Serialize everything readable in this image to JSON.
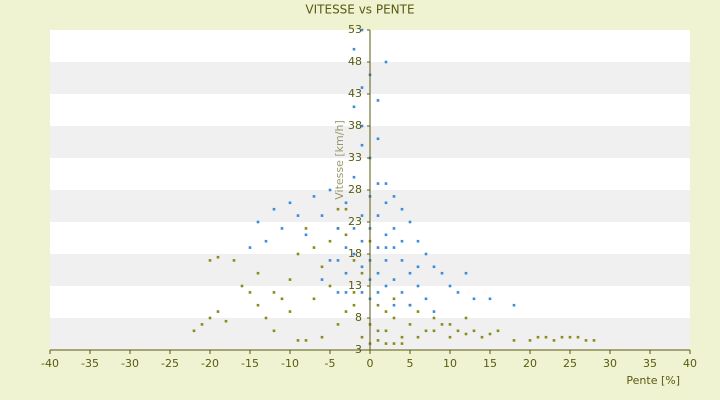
{
  "chart_data": {
    "type": "scatter",
    "title": "VITESSE vs PENTE",
    "xlabel": "Pente [%]",
    "ylabel": "Vitesse [km/h]",
    "xlim": [
      -40,
      40
    ],
    "xticks": [
      -40,
      -35,
      -30,
      -25,
      -20,
      -15,
      -10,
      -5,
      0,
      5,
      10,
      15,
      20,
      25,
      30,
      35,
      40
    ],
    "ylim": [
      3,
      53
    ],
    "yticks": [
      3,
      8,
      13,
      18,
      23,
      28,
      33,
      38,
      43,
      48,
      53
    ],
    "grid": true,
    "series": [
      {
        "color": "#8a8a1a",
        "x": [
          -22,
          -21,
          -20,
          -19,
          -18,
          -20,
          -19,
          -17,
          -16,
          -15,
          -14,
          -13,
          -12,
          -11,
          -10,
          -9,
          -8,
          -7,
          -6,
          -5,
          -4,
          -3,
          -2,
          -1,
          0,
          1,
          2,
          3,
          4,
          5,
          6,
          7,
          8,
          9,
          10,
          11,
          12,
          13,
          14,
          15,
          16,
          18,
          20,
          21,
          22,
          23,
          24,
          25,
          26,
          27,
          28,
          -6,
          -4,
          -3,
          -2,
          -1,
          0,
          1,
          2,
          3,
          4,
          5,
          6,
          -8,
          -12,
          -10,
          -7,
          -5,
          -4,
          -3,
          -2,
          0,
          1,
          2,
          3,
          8,
          10,
          12,
          -14,
          -9
        ],
        "y": [
          6,
          7,
          8,
          9,
          7.5,
          17,
          17.5,
          17,
          13,
          12,
          10,
          8,
          6,
          11,
          14,
          18,
          22,
          19,
          16,
          13,
          25,
          21,
          10,
          5,
          4,
          4.5,
          6,
          8,
          5,
          7,
          9,
          6,
          8,
          7,
          5,
          6,
          5.5,
          6,
          5,
          5.5,
          6,
          4.5,
          4.5,
          5,
          5,
          4.5,
          5,
          5,
          5,
          4.5,
          4.5,
          5,
          7,
          9,
          12,
          15,
          20,
          10,
          4,
          4,
          4,
          10,
          5,
          4.5,
          12,
          9,
          11,
          20,
          22,
          25,
          17,
          7,
          6,
          9,
          11,
          6,
          7,
          8,
          15,
          4.5
        ]
      },
      {
        "color": "#3a8ad6",
        "x": [
          -15,
          -14,
          -13,
          -12,
          -11,
          -10,
          -9,
          -8,
          -7,
          -6,
          -5,
          -4,
          -3,
          -2,
          -1,
          -2,
          -1,
          -2,
          -1,
          0,
          1,
          2,
          -1,
          0,
          1,
          2,
          3,
          4,
          5,
          6,
          7,
          8,
          9,
          10,
          11,
          12,
          13,
          15,
          18,
          -6,
          -5,
          -4,
          -3,
          -2,
          -1,
          0,
          1,
          2,
          3,
          4,
          5,
          6,
          7,
          8,
          0,
          1,
          2,
          3,
          4,
          -1,
          0,
          1,
          2,
          3,
          -3,
          -2,
          -1,
          0,
          1,
          2,
          -4,
          -3,
          1,
          3,
          5,
          0,
          -1,
          2,
          4,
          6
        ],
        "y": [
          19,
          23,
          20,
          25,
          22,
          26,
          24,
          21,
          27,
          24,
          28,
          22,
          26,
          30,
          35,
          41,
          44,
          50,
          53,
          46,
          42,
          48,
          38,
          33,
          36,
          29,
          27,
          25,
          23,
          20,
          18,
          16,
          15,
          13,
          12,
          15,
          11,
          11,
          10,
          14,
          17,
          12,
          15,
          18,
          20,
          22,
          24,
          21,
          19,
          17,
          15,
          13,
          11,
          9,
          17,
          15,
          13,
          14,
          12,
          12,
          11,
          19,
          17,
          22,
          19,
          22,
          24,
          27,
          29,
          26,
          17,
          12,
          12,
          10,
          10,
          14,
          16,
          19,
          20,
          16
        ]
      }
    ]
  }
}
